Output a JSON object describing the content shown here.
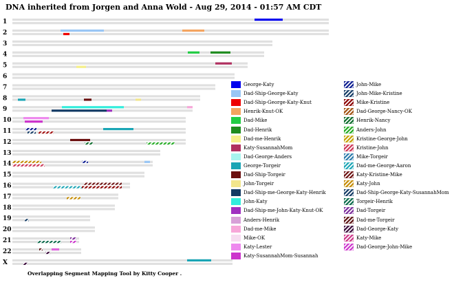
{
  "title": "DNA inherited from Jorgen and Anna Wold - Aug 29, 2014 - 01:57 AM CDT",
  "footer": "Overlapping Segment Mapping Tool by Kitty Cooper .",
  "chart_data": {
    "type": "chromosome-map",
    "chromosomes": [
      {
        "label": "1",
        "length": 460,
        "segments": [
          {
            "row": 0,
            "start": 352,
            "end": 393,
            "color": "#0000ee",
            "pattern": "solid"
          }
        ]
      },
      {
        "label": "2",
        "length": 460,
        "segments": [
          {
            "row": 0,
            "start": 70,
            "end": 133,
            "color": "#99c6f5",
            "pattern": "solid"
          },
          {
            "row": 0,
            "start": 247,
            "end": 279,
            "color": "#f4a460",
            "pattern": "solid"
          },
          {
            "row": 1,
            "start": 74,
            "end": 83,
            "color": "#ee0000",
            "pattern": "solid"
          }
        ]
      },
      {
        "label": "3",
        "length": 378,
        "segments": []
      },
      {
        "label": "4",
        "length": 366,
        "segments": [
          {
            "row": 0,
            "start": 255,
            "end": 272,
            "color": "#22cc44",
            "pattern": "solid"
          },
          {
            "row": 0,
            "start": 288,
            "end": 317,
            "color": "#1e8c1e",
            "pattern": "solid"
          }
        ]
      },
      {
        "label": "5",
        "length": 342,
        "segments": [
          {
            "row": 0,
            "start": 295,
            "end": 319,
            "color": "#b03060",
            "pattern": "solid"
          },
          {
            "row": 1,
            "start": 93,
            "end": 107,
            "color": "#f6f08a",
            "pattern": "solid"
          }
        ]
      },
      {
        "label": "6",
        "length": 323,
        "segments": []
      },
      {
        "label": "7",
        "length": 295,
        "segments": []
      },
      {
        "label": "8",
        "length": 273,
        "segments": [
          {
            "row": 1,
            "start": 8,
            "end": 19,
            "color": "#1aa5b5",
            "pattern": "solid"
          },
          {
            "row": 1,
            "start": 104,
            "end": 115,
            "color": "#6b0f0f",
            "pattern": "solid"
          },
          {
            "row": 1,
            "start": 179,
            "end": 187,
            "color": "#f2e68c",
            "pattern": "solid"
          }
        ]
      },
      {
        "label": "9",
        "length": 262,
        "segments": [
          {
            "row": 0,
            "start": 72,
            "end": 162,
            "color": "#33eedd",
            "pattern": "solid"
          },
          {
            "row": 0,
            "start": 254,
            "end": 262,
            "color": "#f7a7d9",
            "pattern": "solid"
          },
          {
            "row": 1,
            "start": 57,
            "end": 137,
            "color": "#123a64",
            "pattern": "solid"
          },
          {
            "row": 1,
            "start": 137,
            "end": 145,
            "color": "#a030c0",
            "pattern": "solid"
          }
        ]
      },
      {
        "label": "10",
        "length": 252,
        "segments": [
          {
            "row": 0,
            "start": 16,
            "end": 53,
            "color": "#ee88ee",
            "pattern": "solid"
          },
          {
            "row": 1,
            "start": 18,
            "end": 44,
            "color": "#cc33cc",
            "pattern": "solid"
          }
        ]
      },
      {
        "label": "11",
        "length": 252,
        "segments": [
          {
            "row": 0,
            "start": 19,
            "end": 35,
            "color": "#0a1a90",
            "pattern": "stripe"
          },
          {
            "row": 0,
            "start": 132,
            "end": 176,
            "color": "#1aa5b5",
            "pattern": "solid"
          },
          {
            "row": 1,
            "start": 22,
            "end": 34,
            "color": "#123a64",
            "pattern": "stripe"
          },
          {
            "row": 1,
            "start": 38,
            "end": 60,
            "color": "#a01010",
            "pattern": "stripe"
          }
        ]
      },
      {
        "label": "12",
        "length": 252,
        "segments": [
          {
            "row": 0,
            "start": 84,
            "end": 113,
            "color": "#6b0f0f",
            "pattern": "solid"
          },
          {
            "row": 1,
            "start": 105,
            "end": 117,
            "color": "#0a6a2a",
            "pattern": "stripe"
          },
          {
            "row": 1,
            "start": 195,
            "end": 236,
            "color": "#22aa22",
            "pattern": "stripe"
          }
        ]
      },
      {
        "label": "13",
        "length": 215,
        "segments": []
      },
      {
        "label": "14",
        "length": 204,
        "segments": [
          {
            "row": 0,
            "start": 0,
            "end": 42,
            "color": "#c48a00",
            "pattern": "stripe"
          },
          {
            "row": 0,
            "start": 101,
            "end": 110,
            "color": "#0a1a90",
            "pattern": "stripe"
          },
          {
            "row": 0,
            "start": 192,
            "end": 200,
            "color": "#99c6f5",
            "pattern": "solid"
          },
          {
            "row": 1,
            "start": 0,
            "end": 47,
            "color": "#cc3355",
            "pattern": "stripe"
          }
        ]
      },
      {
        "label": "15",
        "length": 192,
        "segments": []
      },
      {
        "label": "16",
        "length": 171,
        "segments": [
          {
            "row": 0,
            "start": 104,
            "end": 159,
            "color": "#6b0f0f",
            "pattern": "stripe"
          },
          {
            "row": 1,
            "start": 59,
            "end": 101,
            "color": "#1aa5b5",
            "pattern": "stripe"
          },
          {
            "row": 1,
            "start": 101,
            "end": 159,
            "color": "#8b0000",
            "pattern": "stripe"
          }
        ]
      },
      {
        "label": "17",
        "length": 154,
        "segments": [
          {
            "row": 1,
            "start": 79,
            "end": 99,
            "color": "#c48a00",
            "pattern": "stripe"
          }
        ]
      },
      {
        "label": "18",
        "length": 149,
        "segments": []
      },
      {
        "label": "19",
        "length": 113,
        "segments": [
          {
            "row": 1,
            "start": 18,
            "end": 24,
            "color": "#123a64",
            "pattern": "stripe"
          }
        ]
      },
      {
        "label": "20",
        "length": 120,
        "segments": []
      },
      {
        "label": "21",
        "length": 97,
        "segments": [
          {
            "row": 0,
            "start": 84,
            "end": 93,
            "color": "#7a2a9a",
            "pattern": "stripe"
          },
          {
            "row": 1,
            "start": 36,
            "end": 71,
            "color": "#0a6a4a",
            "pattern": "stripe"
          },
          {
            "row": 1,
            "start": 84,
            "end": 93,
            "color": "#cc33cc",
            "pattern": "stripe"
          }
        ]
      },
      {
        "label": "22",
        "length": 100,
        "segments": [
          {
            "row": 0,
            "start": 39,
            "end": 44,
            "color": "#5a1010",
            "pattern": "stripe"
          },
          {
            "row": 0,
            "start": 57,
            "end": 68,
            "color": "#dd66dd",
            "pattern": "solid"
          },
          {
            "row": 1,
            "start": 48,
            "end": 55,
            "color": "#3a0a3a",
            "pattern": "stripe"
          }
        ]
      },
      {
        "label": "X",
        "length": 320,
        "segments": [
          {
            "row": 0,
            "start": 254,
            "end": 289,
            "color": "#1aa5b5",
            "pattern": "solid"
          },
          {
            "row": 1,
            "start": 16,
            "end": 22,
            "color": "#3a0a3a",
            "pattern": "stripe"
          }
        ]
      }
    ],
    "legend": [
      {
        "label": "George-Katy",
        "color": "#0000ee",
        "pattern": "solid"
      },
      {
        "label": "Dad-Ship-George-Katy",
        "color": "#99c6f5",
        "pattern": "solid"
      },
      {
        "label": "Dad-Ship-George-Katy-Knut",
        "color": "#ee0000",
        "pattern": "solid"
      },
      {
        "label": "Henrik-Knut-OK",
        "color": "#f4a460",
        "pattern": "solid"
      },
      {
        "label": "Dad-Mike",
        "color": "#22cc44",
        "pattern": "solid"
      },
      {
        "label": "Dad-Henrik",
        "color": "#1e8c1e",
        "pattern": "solid"
      },
      {
        "label": "Dad-me-Henrik",
        "color": "#f6f08a",
        "pattern": "solid"
      },
      {
        "label": "Katy-SusannahMom",
        "color": "#b03060",
        "pattern": "solid"
      },
      {
        "label": "Dad-George-Anders",
        "color": "#a8f4ee",
        "pattern": "solid"
      },
      {
        "label": "George-Torgeir",
        "color": "#1aa5b5",
        "pattern": "solid"
      },
      {
        "label": "Dad-Ship-Torgeir",
        "color": "#6b0f0f",
        "pattern": "solid"
      },
      {
        "label": "John-Torgeir",
        "color": "#f2e68c",
        "pattern": "solid"
      },
      {
        "label": "Dad-Ship-me-George-Katy-Henrik",
        "color": "#123a64",
        "pattern": "solid"
      },
      {
        "label": "John-Katy",
        "color": "#33eedd",
        "pattern": "solid"
      },
      {
        "label": "Dad-Ship-me-John-Katy-Knut-OK",
        "color": "#a030c0",
        "pattern": "solid"
      },
      {
        "label": "Anders-Henrik",
        "color": "#d8a0d8",
        "pattern": "solid"
      },
      {
        "label": "Dad-me-Mike",
        "color": "#f7a7d9",
        "pattern": "solid"
      },
      {
        "label": "Mike-OK",
        "color": "#f6dcf0",
        "pattern": "solid"
      },
      {
        "label": "Katy-Lester",
        "color": "#ee88ee",
        "pattern": "solid"
      },
      {
        "label": "Katy-SusannahMom-Susannah",
        "color": "#cc33cc",
        "pattern": "solid"
      },
      {
        "label": "John-Mike",
        "color": "#0a1a90",
        "pattern": "stripe"
      },
      {
        "label": "John-Mike-Kristine",
        "color": "#123a64",
        "pattern": "stripe"
      },
      {
        "label": "Mike-Kristine",
        "color": "#8b0000",
        "pattern": "stripe"
      },
      {
        "label": "Dad-George-Nancy-OK",
        "color": "#a05010",
        "pattern": "stripe"
      },
      {
        "label": "Henrik-Nancy",
        "color": "#0a6a2a",
        "pattern": "stripe"
      },
      {
        "label": "Anders-John",
        "color": "#22aa22",
        "pattern": "stripe"
      },
      {
        "label": "Kristine-George-John",
        "color": "#c4a000",
        "pattern": "stripe"
      },
      {
        "label": "Kristine-John",
        "color": "#cc3355",
        "pattern": "stripe"
      },
      {
        "label": "Mike-Torgeir",
        "color": "#2a7aaa",
        "pattern": "stripe"
      },
      {
        "label": "Dad-me-George-Aaron",
        "color": "#1aa5b5",
        "pattern": "stripe"
      },
      {
        "label": "Katy-Kristine-Mike",
        "color": "#6b0f0f",
        "pattern": "stripe"
      },
      {
        "label": "Katy-John",
        "color": "#c48a00",
        "pattern": "stripe"
      },
      {
        "label": "Dad-Ship-George-Katy-SusannahMom",
        "color": "#123a64",
        "pattern": "stripe"
      },
      {
        "label": "Torgeir-Henrik",
        "color": "#0a6a4a",
        "pattern": "stripe"
      },
      {
        "label": "Dad-Torgeir",
        "color": "#7a2a9a",
        "pattern": "stripe"
      },
      {
        "label": "Dad-me-Torgeir",
        "color": "#5a1010",
        "pattern": "stripe"
      },
      {
        "label": "Dad-George-Katy",
        "color": "#3a0a3a",
        "pattern": "stripe"
      },
      {
        "label": "Katy-Mike",
        "color": "#cc3388",
        "pattern": "stripe"
      },
      {
        "label": "Dad-George-John-Mike",
        "color": "#cc33cc",
        "pattern": "stripe"
      }
    ]
  }
}
